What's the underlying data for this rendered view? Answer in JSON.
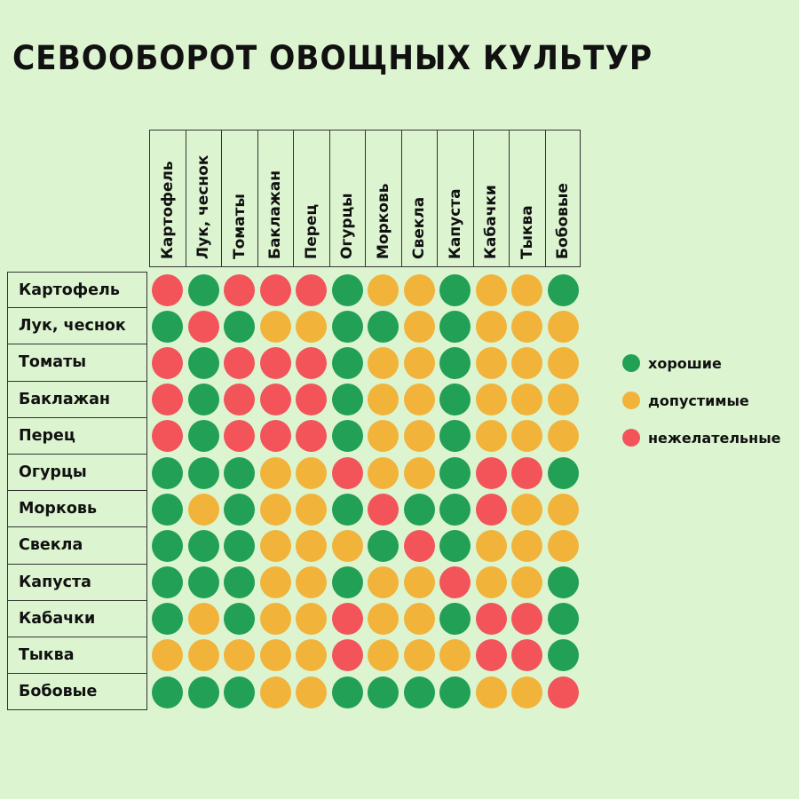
{
  "title": "СЕВООБОРОТ ОВОЩНЫХ КУЛЬТУР",
  "colors": {
    "g": "#22a055",
    "y": "#f2b33b",
    "r": "#f25459"
  },
  "legend": [
    {
      "code": "g",
      "label": "хорошие"
    },
    {
      "code": "y",
      "label": "допустимые"
    },
    {
      "code": "r",
      "label": "нежелательные"
    }
  ],
  "crops": [
    "Картофель",
    "Лук, чеснок",
    "Томаты",
    "Баклажан",
    "Перец",
    "Огурцы",
    "Морковь",
    "Свекла",
    "Капуста",
    "Кабачки",
    "Тыква",
    "Бобовые"
  ],
  "chart_data": {
    "type": "heatmap",
    "title": "СЕВООБОРОТ ОВОЩНЫХ КУЛЬТУР",
    "x": [
      "Картофель",
      "Лук, чеснок",
      "Томаты",
      "Баклажан",
      "Перец",
      "Огурцы",
      "Морковь",
      "Свекла",
      "Капуста",
      "Кабачки",
      "Тыква",
      "Бобовые"
    ],
    "y": [
      "Картофель",
      "Лук, чеснок",
      "Томаты",
      "Баклажан",
      "Перец",
      "Огурцы",
      "Морковь",
      "Свекла",
      "Капуста",
      "Кабачки",
      "Тыква",
      "Бобовые"
    ],
    "legend": {
      "g": "хорошие",
      "y": "допустимые",
      "r": "нежелательные"
    },
    "legend_position": "right",
    "values": [
      [
        "r",
        "g",
        "r",
        "r",
        "r",
        "g",
        "y",
        "y",
        "g",
        "y",
        "y",
        "g"
      ],
      [
        "g",
        "r",
        "g",
        "y",
        "y",
        "g",
        "g",
        "y",
        "g",
        "y",
        "y",
        "y"
      ],
      [
        "r",
        "g",
        "r",
        "r",
        "r",
        "g",
        "y",
        "y",
        "g",
        "y",
        "y",
        "y"
      ],
      [
        "r",
        "g",
        "r",
        "r",
        "r",
        "g",
        "y",
        "y",
        "g",
        "y",
        "y",
        "y"
      ],
      [
        "r",
        "g",
        "r",
        "r",
        "r",
        "g",
        "y",
        "y",
        "g",
        "y",
        "y",
        "y"
      ],
      [
        "g",
        "g",
        "g",
        "y",
        "y",
        "r",
        "y",
        "y",
        "g",
        "r",
        "r",
        "g"
      ],
      [
        "g",
        "y",
        "g",
        "y",
        "y",
        "g",
        "r",
        "g",
        "g",
        "r",
        "y",
        "y"
      ],
      [
        "g",
        "g",
        "g",
        "y",
        "y",
        "y",
        "g",
        "r",
        "g",
        "y",
        "y",
        "y"
      ],
      [
        "g",
        "g",
        "g",
        "y",
        "y",
        "g",
        "y",
        "y",
        "r",
        "y",
        "y",
        "g"
      ],
      [
        "g",
        "y",
        "g",
        "y",
        "y",
        "r",
        "y",
        "y",
        "g",
        "r",
        "r",
        "g"
      ],
      [
        "y",
        "y",
        "y",
        "y",
        "y",
        "r",
        "y",
        "y",
        "y",
        "r",
        "r",
        "g"
      ],
      [
        "g",
        "g",
        "g",
        "y",
        "y",
        "g",
        "g",
        "g",
        "g",
        "y",
        "y",
        "r"
      ]
    ]
  }
}
